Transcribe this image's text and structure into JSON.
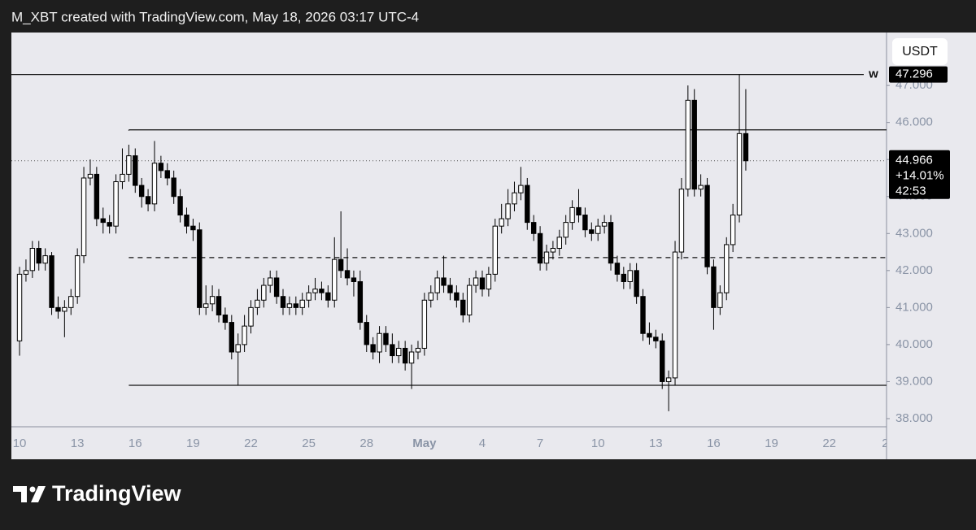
{
  "header": "M_XBT created with TradingView.com, May 18, 2026 03:17 UTC-4",
  "logo": "TradingView",
  "chart_data": {
    "type": "candlestick",
    "currency": "USDT",
    "up_color": "#ffffff",
    "down_color": "#000000",
    "open": [
      40.1,
      41.9,
      42.0,
      42.6,
      42.2,
      42.4,
      41.0,
      40.9,
      41.0,
      41.3,
      42.4,
      44.5,
      44.6,
      43.4,
      43.3,
      43.2,
      44.4,
      44.6,
      45.1,
      44.3,
      44.0,
      43.8,
      44.9,
      44.7,
      44.5,
      44.0,
      43.5,
      43.2,
      43.1,
      41.0,
      41.1,
      41.3,
      40.8,
      40.6,
      39.8,
      40.0,
      40.5,
      41.0,
      41.2,
      41.6,
      41.8,
      41.3,
      41.0,
      41.1,
      41.0,
      41.2,
      41.4,
      41.5,
      41.4,
      41.2,
      42.3,
      42.0,
      41.8,
      41.7,
      40.6,
      40.0,
      39.8,
      40.3,
      40.0,
      39.7,
      39.9,
      39.5,
      39.8,
      39.9,
      41.2,
      41.4,
      41.8,
      41.6,
      41.4,
      41.2,
      40.8,
      41.6,
      41.8,
      41.5,
      41.9,
      43.2,
      43.4,
      43.8,
      44.1,
      44.3,
      43.3,
      43.0,
      42.2,
      42.5,
      42.6,
      42.9,
      43.3,
      43.7,
      43.5,
      43.1,
      43.0,
      43.2,
      43.3,
      42.2,
      41.9,
      41.7,
      42.0,
      41.3,
      40.3,
      40.2,
      40.1,
      39.0,
      39.1,
      42.5,
      44.2,
      46.6,
      44.2,
      44.3,
      42.1,
      41.0,
      41.4,
      42.7,
      43.5,
      45.7
    ],
    "high": [
      42.1,
      42.3,
      42.8,
      42.8,
      42.6,
      42.5,
      41.3,
      41.2,
      41.5,
      42.6,
      44.8,
      45.0,
      44.8,
      43.7,
      43.5,
      44.6,
      45.3,
      45.4,
      45.3,
      44.5,
      44.2,
      45.5,
      45.1,
      44.9,
      44.7,
      44.2,
      43.7,
      43.4,
      43.3,
      41.6,
      41.6,
      41.5,
      41.0,
      40.8,
      40.3,
      40.8,
      41.2,
      41.5,
      41.8,
      42.0,
      42.0,
      41.5,
      41.3,
      41.3,
      41.4,
      41.6,
      41.8,
      41.7,
      41.6,
      42.9,
      43.6,
      42.6,
      42.0,
      42.0,
      40.8,
      40.2,
      40.5,
      40.5,
      40.3,
      40.1,
      40.1,
      40.0,
      40.1,
      41.4,
      41.6,
      42.0,
      42.4,
      41.8,
      41.6,
      41.4,
      41.8,
      42.0,
      42.0,
      42.1,
      43.4,
      43.8,
      44.2,
      44.4,
      44.8,
      44.5,
      43.5,
      43.2,
      42.7,
      42.8,
      43.1,
      43.5,
      43.9,
      44.2,
      43.7,
      43.3,
      43.4,
      43.5,
      43.5,
      42.4,
      42.1,
      42.2,
      42.2,
      41.5,
      40.6,
      40.4,
      40.3,
      39.3,
      42.8,
      44.5,
      47.0,
      46.9,
      44.6,
      44.5,
      42.3,
      41.6,
      42.9,
      43.8,
      47.296,
      46.9
    ],
    "low": [
      39.7,
      41.7,
      41.8,
      42.0,
      42.0,
      40.8,
      40.7,
      40.2,
      40.8,
      41.1,
      42.2,
      44.3,
      43.2,
      43.0,
      43.0,
      43.0,
      44.2,
      44.4,
      44.1,
      43.7,
      43.6,
      43.6,
      44.5,
      44.3,
      43.8,
      43.3,
      43.0,
      42.8,
      40.8,
      40.8,
      40.9,
      40.6,
      40.4,
      39.6,
      38.9,
      39.8,
      40.3,
      40.8,
      41.0,
      41.4,
      41.1,
      40.8,
      40.8,
      40.8,
      40.8,
      41.0,
      41.2,
      41.2,
      41.0,
      41.0,
      41.8,
      41.6,
      41.3,
      40.4,
      39.8,
      39.6,
      39.5,
      39.8,
      39.5,
      39.5,
      39.3,
      38.8,
      39.6,
      39.7,
      41.0,
      41.2,
      41.4,
      41.2,
      41.0,
      40.6,
      40.6,
      41.4,
      41.3,
      41.3,
      41.7,
      43.0,
      43.2,
      43.6,
      43.9,
      43.1,
      42.8,
      42.0,
      42.0,
      42.3,
      42.4,
      42.7,
      43.1,
      43.3,
      42.9,
      42.8,
      42.8,
      43.0,
      42.0,
      41.7,
      41.5,
      41.5,
      41.1,
      40.1,
      40.0,
      39.9,
      38.8,
      38.2,
      38.9,
      42.3,
      44.0,
      44.0,
      44.0,
      41.9,
      40.4,
      40.8,
      41.2,
      42.5,
      43.3,
      44.7
    ],
    "close": [
      41.9,
      42.0,
      42.6,
      42.2,
      42.4,
      41.0,
      40.9,
      41.0,
      41.3,
      42.4,
      44.5,
      44.6,
      43.4,
      43.3,
      43.2,
      44.4,
      44.6,
      45.1,
      44.3,
      44.0,
      43.8,
      44.9,
      44.7,
      44.5,
      44.0,
      43.5,
      43.2,
      43.1,
      41.0,
      41.1,
      41.3,
      40.8,
      40.6,
      39.8,
      40.0,
      40.5,
      41.0,
      41.2,
      41.6,
      41.8,
      41.3,
      41.0,
      41.1,
      41.0,
      41.2,
      41.4,
      41.5,
      41.4,
      41.2,
      42.3,
      42.0,
      41.8,
      41.7,
      40.6,
      40.0,
      39.8,
      40.3,
      40.0,
      39.7,
      39.9,
      39.5,
      39.8,
      39.9,
      41.2,
      41.4,
      41.8,
      41.6,
      41.4,
      41.2,
      40.8,
      41.6,
      41.8,
      41.5,
      41.9,
      43.2,
      43.4,
      43.8,
      44.1,
      44.3,
      43.3,
      43.0,
      42.2,
      42.5,
      42.6,
      42.9,
      43.3,
      43.7,
      43.5,
      43.1,
      43.0,
      43.2,
      43.3,
      42.2,
      41.9,
      41.7,
      42.0,
      41.3,
      40.3,
      40.2,
      40.1,
      39.0,
      39.1,
      42.5,
      44.2,
      46.6,
      44.2,
      44.3,
      42.1,
      41.0,
      41.4,
      42.7,
      43.5,
      45.7,
      44.966
    ],
    "xlim": [
      -1.27,
      134.9
    ],
    "xticks": [
      {
        "value": 0,
        "label": "10"
      },
      {
        "value": 9,
        "label": "13"
      },
      {
        "value": 18,
        "label": "16"
      },
      {
        "value": 27,
        "label": "19"
      },
      {
        "value": 36,
        "label": "22"
      },
      {
        "value": 45,
        "label": "25"
      },
      {
        "value": 54,
        "label": "28"
      },
      {
        "value": 63,
        "label": "May"
      },
      {
        "value": 72,
        "label": "4"
      },
      {
        "value": 81,
        "label": "7"
      },
      {
        "value": 90,
        "label": "10"
      },
      {
        "value": 99,
        "label": "13"
      },
      {
        "value": 108,
        "label": "16"
      },
      {
        "value": 117,
        "label": "19"
      },
      {
        "value": 126,
        "label": "22"
      },
      {
        "value": 134.7,
        "label": "2"
      }
    ],
    "ylim": [
      37.78,
      48.43
    ],
    "yticks": [
      {
        "value": 38,
        "label": "38.000"
      },
      {
        "value": 39,
        "label": "39.000"
      },
      {
        "value": 40,
        "label": "40.000"
      },
      {
        "value": 41,
        "label": "41.000"
      },
      {
        "value": 42,
        "label": "42.000"
      },
      {
        "value": 43,
        "label": "43.000"
      },
      {
        "value": 44,
        "label": "44.000"
      },
      {
        "value": 45,
        "label": "45.000"
      },
      {
        "value": 46,
        "label": "46.000"
      },
      {
        "value": 47,
        "label": "47.000"
      }
    ],
    "high_line": {
      "value": 47.296,
      "tag": "w"
    },
    "range": {
      "start": 17,
      "top": 45.8,
      "mid": 42.35,
      "bottom": 38.9
    },
    "current_price": {
      "value": 44.966,
      "change": "+14.01%",
      "countdown": "42:53"
    }
  }
}
